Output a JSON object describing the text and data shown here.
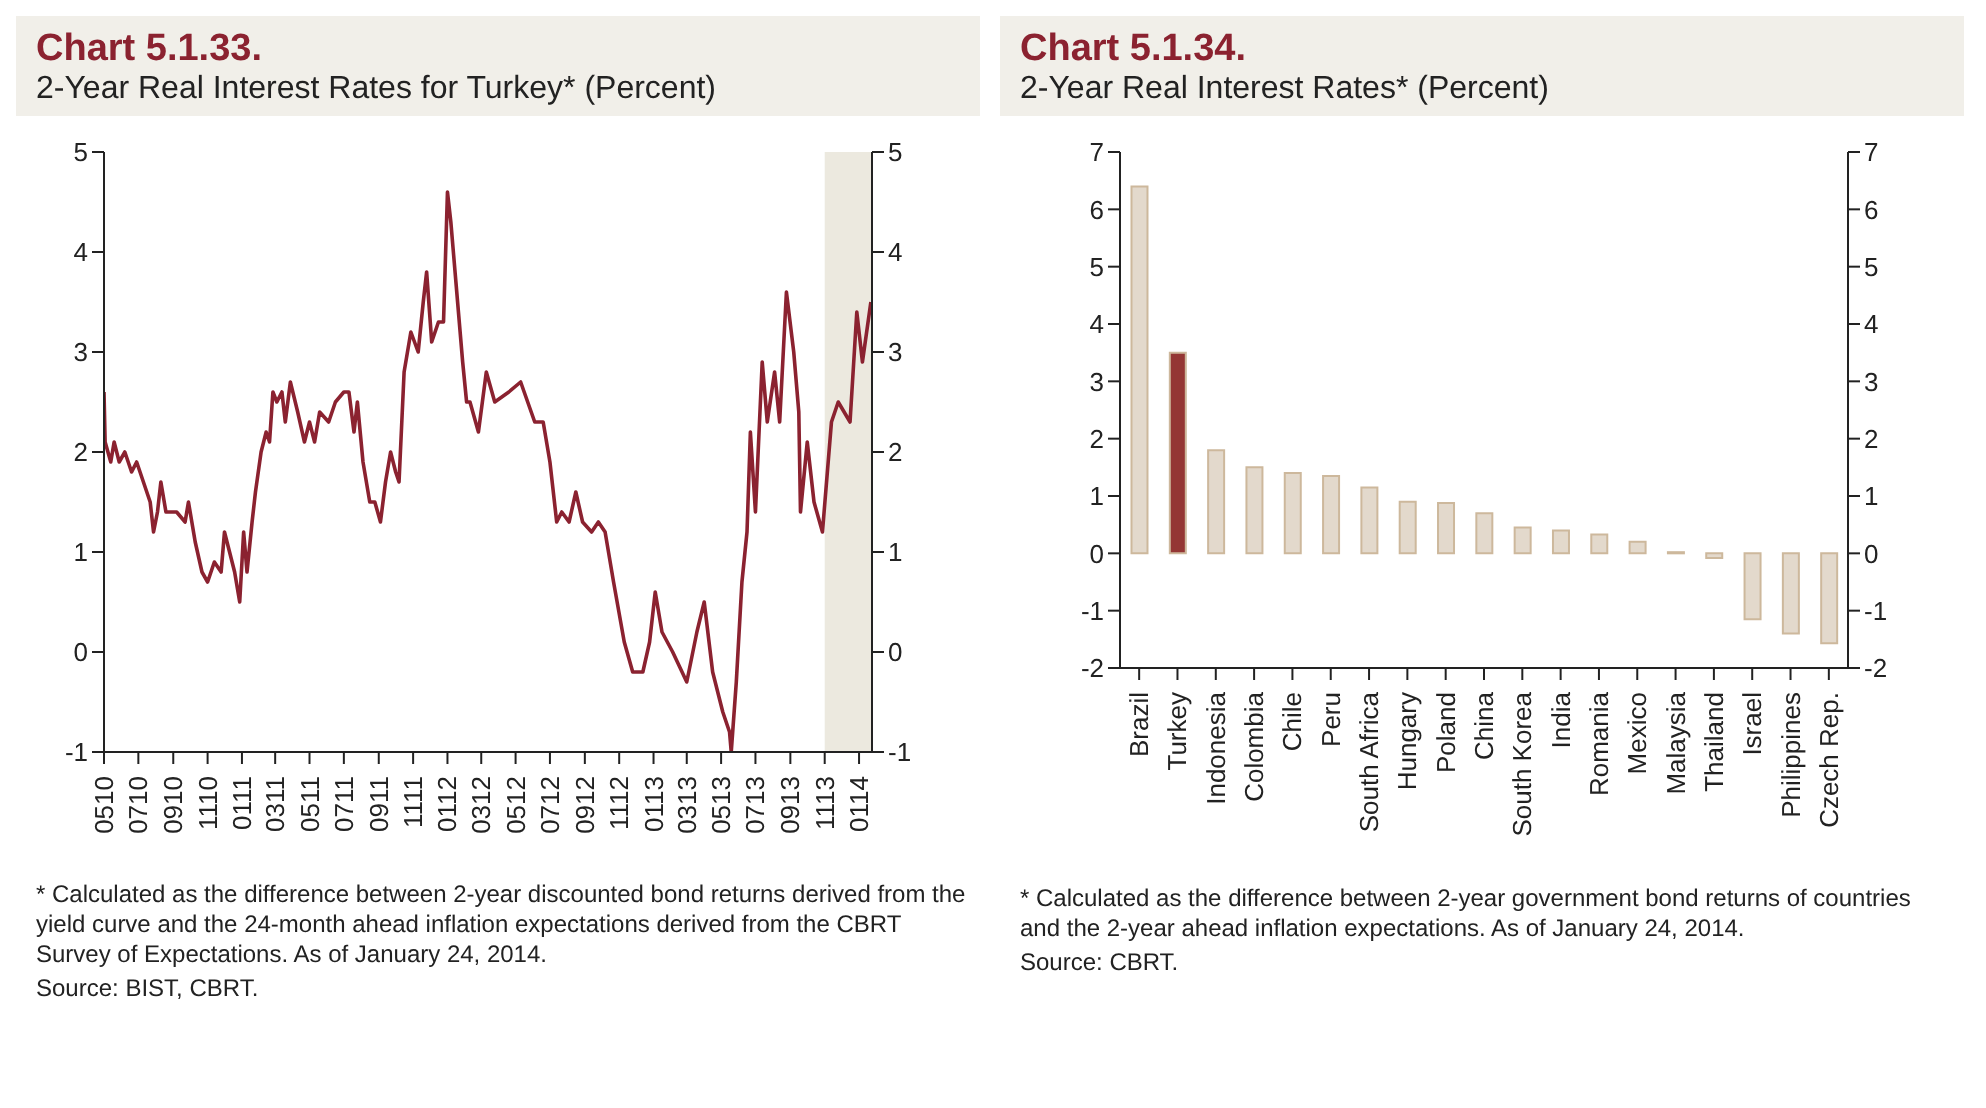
{
  "chart_data": [
    {
      "type": "line",
      "title": "Chart 5.1.33.",
      "subtitle": "2-Year Real Interest Rates for Turkey* (Percent)",
      "x": [
        "2010-05-01",
        "2010-05-03",
        "2010-05-13",
        "2010-05-19",
        "2010-05-28",
        "2010-06-07",
        "2010-06-19",
        "2010-06-28",
        "2010-07-10",
        "2010-07-22",
        "2010-07-28",
        "2010-08-04",
        "2010-08-10",
        "2010-08-19",
        "2010-09-07",
        "2010-09-22",
        "2010-09-28",
        "2010-10-10",
        "2010-10-22",
        "2010-11-01",
        "2010-11-13",
        "2010-11-25",
        "2010-12-01",
        "2010-12-10",
        "2010-12-19",
        "2010-12-28",
        "2011-01-04",
        "2011-01-10",
        "2011-01-19",
        "2011-01-25",
        "2011-02-04",
        "2011-02-13",
        "2011-02-19",
        "2011-02-25",
        "2011-03-04",
        "2011-03-13",
        "2011-03-19",
        "2011-03-28",
        "2011-04-10",
        "2011-04-22",
        "2011-05-01",
        "2011-05-10",
        "2011-05-19",
        "2011-06-04",
        "2011-06-16",
        "2011-07-01",
        "2011-07-10",
        "2011-07-19",
        "2011-07-25",
        "2011-08-04",
        "2011-08-16",
        "2011-08-25",
        "2011-09-04",
        "2011-09-13",
        "2011-09-22",
        "2011-10-01",
        "2011-10-07",
        "2011-10-16",
        "2011-10-28",
        "2011-11-10",
        "2011-11-19",
        "2011-11-25",
        "2011-12-04",
        "2011-12-16",
        "2011-12-25",
        "2012-01-01",
        "2012-01-07",
        "2012-01-16",
        "2012-01-28",
        "2012-02-04",
        "2012-02-10",
        "2012-02-25",
        "2012-03-10",
        "2012-03-25",
        "2012-04-19",
        "2012-05-10",
        "2012-06-04",
        "2012-06-19",
        "2012-07-01",
        "2012-07-13",
        "2012-07-22",
        "2012-08-04",
        "2012-08-16",
        "2012-08-28",
        "2012-09-13",
        "2012-09-25",
        "2012-10-07",
        "2012-10-22",
        "2012-11-10",
        "2012-11-25",
        "2012-12-13",
        "2012-12-25",
        "2013-01-04",
        "2013-01-16",
        "2013-02-04",
        "2013-03-01",
        "2013-03-19",
        "2013-04-01",
        "2013-04-16",
        "2013-05-04",
        "2013-05-16",
        "2013-05-19",
        "2013-05-28",
        "2013-06-07",
        "2013-06-16",
        "2013-06-22",
        "2013-07-01",
        "2013-07-13",
        "2013-07-22",
        "2013-08-04",
        "2013-08-13",
        "2013-08-25",
        "2013-09-07",
        "2013-09-16",
        "2013-09-19",
        "2013-10-01",
        "2013-10-13",
        "2013-10-28",
        "2013-11-13",
        "2013-11-25",
        "2013-12-16",
        "2013-12-28",
        "2014-01-07",
        "2014-01-22"
      ],
      "series": [
        {
          "color": "#8b2230",
          "values": [
            2.6,
            2.1,
            1.9,
            2.1,
            1.9,
            2.0,
            1.8,
            1.9,
            1.7,
            1.5,
            1.2,
            1.4,
            1.7,
            1.4,
            1.4,
            1.3,
            1.5,
            1.1,
            0.8,
            0.7,
            0.9,
            0.8,
            1.2,
            1.0,
            0.8,
            0.5,
            1.2,
            0.8,
            1.3,
            1.6,
            2.0,
            2.2,
            2.1,
            2.6,
            2.5,
            2.6,
            2.3,
            2.7,
            2.4,
            2.1,
            2.3,
            2.1,
            2.4,
            2.3,
            2.5,
            2.6,
            2.6,
            2.2,
            2.5,
            1.9,
            1.5,
            1.5,
            1.3,
            1.7,
            2.0,
            1.8,
            1.7,
            2.8,
            3.2,
            3.0,
            3.5,
            3.8,
            3.1,
            3.3,
            3.3,
            4.6,
            4.3,
            3.7,
            2.9,
            2.5,
            2.5,
            2.2,
            2.8,
            2.5,
            2.6,
            2.7,
            2.3,
            2.3,
            1.9,
            1.3,
            1.4,
            1.3,
            1.6,
            1.3,
            1.2,
            1.3,
            1.2,
            0.7,
            0.1,
            -0.2,
            -0.2,
            0.1,
            0.6,
            0.2,
            0.0,
            -0.3,
            0.2,
            0.5,
            -0.2,
            -0.6,
            -0.8,
            -1.0,
            -0.3,
            0.7,
            1.2,
            2.2,
            1.4,
            2.9,
            2.3,
            2.8,
            2.3,
            3.6,
            3.0,
            2.4,
            1.4,
            2.1,
            1.5,
            1.2,
            2.3,
            2.5,
            2.3,
            3.4,
            2.9,
            3.5
          ]
        }
      ],
      "xlim": [
        "2010-05-01",
        "2014-01-24"
      ],
      "xticks": [
        {
          "value": "2010-05-01",
          "label": "0510"
        },
        {
          "value": "2010-07-01",
          "label": "0710"
        },
        {
          "value": "2010-09-01",
          "label": "0910"
        },
        {
          "value": "2010-11-01",
          "label": "1110"
        },
        {
          "value": "2011-01-01",
          "label": "0111"
        },
        {
          "value": "2011-03-01",
          "label": "0311"
        },
        {
          "value": "2011-05-01",
          "label": "0511"
        },
        {
          "value": "2011-07-01",
          "label": "0711"
        },
        {
          "value": "2011-09-01",
          "label": "0911"
        },
        {
          "value": "2011-11-01",
          "label": "1111"
        },
        {
          "value": "2012-01-01",
          "label": "0112"
        },
        {
          "value": "2012-03-01",
          "label": "0312"
        },
        {
          "value": "2012-05-01",
          "label": "0512"
        },
        {
          "value": "2012-07-01",
          "label": "0712"
        },
        {
          "value": "2012-09-01",
          "label": "0912"
        },
        {
          "value": "2012-11-01",
          "label": "1112"
        },
        {
          "value": "2013-01-01",
          "label": "0113"
        },
        {
          "value": "2013-03-01",
          "label": "0313"
        },
        {
          "value": "2013-05-01",
          "label": "0513"
        },
        {
          "value": "2013-07-01",
          "label": "0713"
        },
        {
          "value": "2013-09-01",
          "label": "0913"
        },
        {
          "value": "2013-11-01",
          "label": "1113"
        },
        {
          "value": "2014-01-01",
          "label": "0114"
        }
      ],
      "ylim": [
        -1,
        5
      ],
      "yticks": [
        -1,
        0,
        1,
        2,
        3,
        4,
        5
      ],
      "y2lim": [
        -1,
        5
      ],
      "y2ticks": [
        -1,
        0,
        1,
        2,
        3,
        4,
        5
      ],
      "bands": [
        {
          "axis": "x",
          "from": "2013-11-01",
          "to": "2014-01-24",
          "color": "#ece9df"
        }
      ],
      "grid": false,
      "legend": false,
      "marker": "none",
      "line_style": "solid",
      "annotations": [
        "* Calculated as the difference between 2-year discounted bond returns derived from the yield curve and the 24-month ahead inflation expectations derived from the CBRT Survey of Expectations. As of January 24, 2014.",
        "Source: BIST, CBRT."
      ]
    },
    {
      "type": "bar",
      "title": "Chart 5.1.34.",
      "subtitle": "2-Year Real Interest Rates* (Percent)",
      "categories": [
        "Brazil",
        "Turkey",
        "Indonesia",
        "Colombia",
        "Chile",
        "Peru",
        "South Africa",
        "Hungary",
        "Poland",
        "China",
        "South Korea",
        "India",
        "Romania",
        "Mexico",
        "Malaysia",
        "Thailand",
        "Israel",
        "Philippines",
        "Czech Rep."
      ],
      "values": [
        6.4,
        3.5,
        1.8,
        1.5,
        1.4,
        1.35,
        1.15,
        0.9,
        0.88,
        0.7,
        0.45,
        0.4,
        0.33,
        0.2,
        0.02,
        -0.08,
        -1.15,
        -1.4,
        -1.57
      ],
      "colors": [
        "#e3d9cc",
        "#943634",
        "#e3d9cc",
        "#e3d9cc",
        "#e3d9cc",
        "#e3d9cc",
        "#e3d9cc",
        "#e3d9cc",
        "#e3d9cc",
        "#e3d9cc",
        "#e3d9cc",
        "#e3d9cc",
        "#e3d9cc",
        "#e3d9cc",
        "#e3d9cc",
        "#e3d9cc",
        "#e3d9cc",
        "#e3d9cc",
        "#e3d9cc"
      ],
      "ylim": [
        -2,
        7
      ],
      "yticks": [
        -2,
        -1,
        0,
        1,
        2,
        3,
        4,
        5,
        6,
        7
      ],
      "y2lim": [
        -2,
        7
      ],
      "y2ticks": [
        -2,
        -1,
        0,
        1,
        2,
        3,
        4,
        5,
        6,
        7
      ],
      "grid": false,
      "legend": false,
      "annotations": [
        "* Calculated as the difference between 2-year government bond returns of countries and the 2-year ahead inflation expectations. As of January 24, 2014.",
        "Source: CBRT."
      ]
    }
  ]
}
